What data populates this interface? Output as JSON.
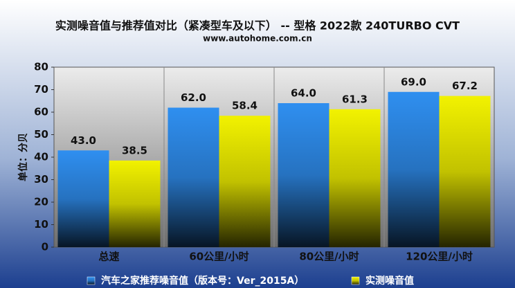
{
  "chart_data": {
    "type": "bar",
    "title": "实测噪音值与推荐值对比（紧凑型车及以下） -- 型格 2022款 240TURBO CVT",
    "subtitle": "www.autohome.com.cn",
    "y_label": "单位：分贝",
    "categories": [
      "总速",
      "60公里/小时",
      "80公里/小时",
      "120公里/小时"
    ],
    "series": [
      {
        "name": "汽车之家推荐噪音值（版本号：Ver_2015A）",
        "color": "#2f8ff0",
        "values": [
          43,
          62,
          64,
          69
        ],
        "value_labels": [
          "43.0",
          "62.0",
          "64.0",
          "69.0"
        ]
      },
      {
        "name": "实测噪音值",
        "color": "#f2f200",
        "values": [
          38.5,
          58.4,
          61.3,
          67.2
        ],
        "value_labels": [
          "38.5",
          "58.4",
          "61.3",
          "67.2"
        ]
      }
    ],
    "ylim": [
      0,
      80
    ],
    "yticks": [
      0,
      10,
      20,
      30,
      40,
      50,
      60,
      70,
      80
    ]
  }
}
